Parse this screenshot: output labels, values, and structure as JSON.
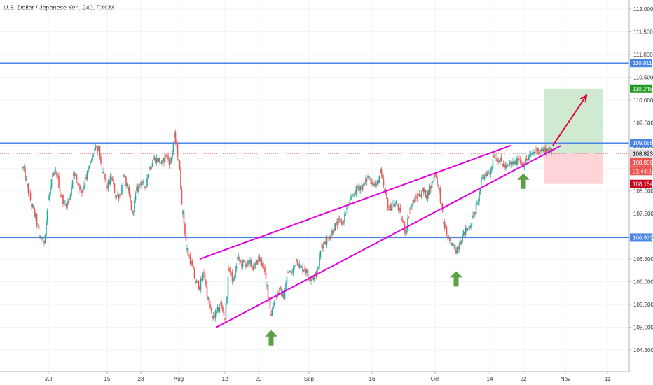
{
  "chart_data": {
    "type": "candlestick",
    "title": "U.S. Dollar / Japanese Yen, 240, FXCM",
    "xlabel": "",
    "ylabel": "",
    "ylim": [
      104.3,
      112.2
    ],
    "grid": true,
    "y_ticks": [
      "104.500",
      "105.000",
      "105.500",
      "106.000",
      "106.500",
      "107.000",
      "107.500",
      "108.000",
      "108.500",
      "109.000",
      "109.500",
      "110.000",
      "110.500",
      "111.000",
      "111.500",
      "112.000"
    ],
    "x_ticks": [
      "Jul",
      "15",
      "23",
      "Aug",
      "12",
      "20",
      "Sep",
      "16",
      "Oct",
      "14",
      "22",
      "Nov",
      "11"
    ],
    "price_path": [
      [
        "Jun 25",
        108.5
      ],
      [
        "Jun 26",
        108.1
      ],
      [
        "Jun 27",
        107.7
      ],
      [
        "Jun 28",
        107.4
      ],
      [
        "Jun 29",
        107.0
      ],
      [
        "Jun 30",
        106.9
      ],
      [
        "Jul 1",
        107.8
      ],
      [
        "Jul 2",
        108.3
      ],
      [
        "Jul 3",
        108.4
      ],
      [
        "Jul 4",
        107.9
      ],
      [
        "Jul 5",
        107.7
      ],
      [
        "Jul 6",
        107.8
      ],
      [
        "Jul 7",
        108.4
      ],
      [
        "Jul 8",
        108.2
      ],
      [
        "Jul 9",
        108.0
      ],
      [
        "Jul 10",
        108.3
      ],
      [
        "Jul 11",
        108.6
      ],
      [
        "Jul 12",
        108.9
      ],
      [
        "Jul 13",
        108.9
      ],
      [
        "Jul 14",
        108.4
      ],
      [
        "Jul 15",
        108.1
      ],
      [
        "Jul 16",
        108.3
      ],
      [
        "Jul 17",
        107.9
      ],
      [
        "Jul 18",
        107.9
      ],
      [
        "Jul 19",
        108.3
      ],
      [
        "Jul 20",
        108.0
      ],
      [
        "Jul 21",
        107.5
      ],
      [
        "Jul 22",
        108.0
      ],
      [
        "Jul 23",
        108.2
      ],
      [
        "Jul 24",
        108.1
      ],
      [
        "Jul 25",
        108.5
      ],
      [
        "Jul 26",
        108.7
      ],
      [
        "Jul 27",
        108.7
      ],
      [
        "Jul 28",
        108.6
      ],
      [
        "Jul 29",
        108.8
      ],
      [
        "Jul 30",
        108.6
      ],
      [
        "Jul 31",
        109.2
      ],
      [
        "Aug 1",
        108.7
      ],
      [
        "Aug 2",
        107.5
      ],
      [
        "Aug 3",
        106.7
      ],
      [
        "Aug 4",
        106.4
      ],
      [
        "Aug 5",
        106.0
      ],
      [
        "Aug 6",
        105.9
      ],
      [
        "Aug 7",
        106.2
      ],
      [
        "Aug 8",
        105.6
      ],
      [
        "Aug 9",
        105.2
      ],
      [
        "Aug 10",
        105.3
      ],
      [
        "Aug 11",
        105.5
      ],
      [
        "Aug 12",
        105.2
      ],
      [
        "Aug 13",
        106.3
      ],
      [
        "Aug 14",
        106.0
      ],
      [
        "Aug 15",
        106.5
      ],
      [
        "Aug 16",
        106.4
      ],
      [
        "Aug 17",
        106.4
      ],
      [
        "Aug 18",
        106.4
      ],
      [
        "Aug 19",
        106.3
      ],
      [
        "Aug 20",
        106.5
      ],
      [
        "Aug 21",
        106.4
      ],
      [
        "Aug 22",
        105.9
      ],
      [
        "Aug 23",
        105.3
      ],
      [
        "Aug 24",
        105.7
      ],
      [
        "Aug 25",
        105.8
      ],
      [
        "Aug 26",
        105.7
      ],
      [
        "Aug 27",
        106.2
      ],
      [
        "Aug 28",
        106.2
      ],
      [
        "Aug 29",
        106.5
      ],
      [
        "Aug 30",
        106.3
      ],
      [
        "Aug 31",
        106.3
      ],
      [
        "Sep 1",
        106.1
      ],
      [
        "Sep 2",
        106.1
      ],
      [
        "Sep 3",
        106.2
      ],
      [
        "Sep 4",
        106.8
      ],
      [
        "Sep 5",
        106.9
      ],
      [
        "Sep 6",
        107.0
      ],
      [
        "Sep 7",
        107.2
      ],
      [
        "Sep 8",
        107.3
      ],
      [
        "Sep 9",
        107.3
      ],
      [
        "Sep 10",
        107.6
      ],
      [
        "Sep 11",
        107.8
      ],
      [
        "Sep 12",
        108.0
      ],
      [
        "Sep 13",
        108.1
      ],
      [
        "Sep 14",
        108.1
      ],
      [
        "Sep 15",
        108.3
      ],
      [
        "Sep 16",
        108.2
      ],
      [
        "Sep 17",
        108.1
      ],
      [
        "Sep 18",
        108.4
      ],
      [
        "Sep 19",
        108.0
      ],
      [
        "Sep 20",
        107.6
      ],
      [
        "Sep 21",
        107.7
      ],
      [
        "Sep 22",
        107.7
      ],
      [
        "Sep 23",
        107.4
      ],
      [
        "Sep 24",
        107.1
      ],
      [
        "Sep 25",
        107.6
      ],
      [
        "Sep 26",
        107.8
      ],
      [
        "Sep 27",
        107.9
      ],
      [
        "Sep 28",
        108.0
      ],
      [
        "Sep 29",
        107.9
      ],
      [
        "Sep 30",
        108.1
      ],
      [
        "Oct 1",
        108.4
      ],
      [
        "Oct 2",
        108.0
      ],
      [
        "Oct 3",
        107.3
      ],
      [
        "Oct 4",
        107.0
      ],
      [
        "Oct 5",
        106.8
      ],
      [
        "Oct 6",
        106.7
      ],
      [
        "Oct 7",
        106.9
      ],
      [
        "Oct 8",
        107.1
      ],
      [
        "Oct 9",
        107.2
      ],
      [
        "Oct 10",
        107.4
      ],
      [
        "Oct 11",
        107.7
      ],
      [
        "Oct 12",
        108.2
      ],
      [
        "Oct 13",
        108.4
      ],
      [
        "Oct 14",
        108.4
      ],
      [
        "Oct 15",
        108.8
      ],
      [
        "Oct 16",
        108.7
      ],
      [
        "Oct 17",
        108.6
      ],
      [
        "Oct 18",
        108.5
      ],
      [
        "Oct 19",
        108.6
      ],
      [
        "Oct 20",
        108.6
      ],
      [
        "Oct 21",
        108.7
      ],
      [
        "Oct 22",
        108.6
      ],
      [
        "Oct 23",
        108.7
      ],
      [
        "Oct 24",
        108.8
      ],
      [
        "Oct 25",
        108.9
      ],
      [
        "Oct 26",
        108.9
      ],
      [
        "Oct 27",
        108.9
      ],
      [
        "Oct 28",
        108.9
      ],
      [
        "Oct 29",
        108.8
      ]
    ],
    "horizontal_levels": [
      {
        "value": 110.811,
        "label": "110.811",
        "color": "#4a86e8"
      },
      {
        "value": 109.055,
        "label": "109.055",
        "color": "#4a86e8"
      },
      {
        "value": 106.973,
        "label": "106.973",
        "color": "#4a86e8"
      }
    ],
    "price_tags": [
      {
        "value": 110.248,
        "label": "110.248",
        "color": "#229922"
      },
      {
        "value": 108.823,
        "label": "108.823",
        "color": "#dddddd"
      },
      {
        "value": 108.8,
        "label": "108.800",
        "color": "#ef5350"
      },
      {
        "value": 108.57,
        "label": "01:44:23",
        "color": "#ef5350"
      },
      {
        "value": 108.154,
        "label": "108.154",
        "color": "#d0021b"
      }
    ],
    "trendlines": [
      {
        "name": "upper",
        "from": [
          "Aug 6",
          106.5
        ],
        "to": [
          "Oct 19",
          109.0
        ],
        "color": "#e000e0"
      },
      {
        "name": "lower",
        "from": [
          "Aug 10",
          105.0
        ],
        "to": [
          "Oct 31",
          109.0
        ],
        "color": "#e000e0"
      }
    ],
    "position_box": {
      "entry": 108.823,
      "target": 110.248,
      "stop": 108.154,
      "from": "Oct 27",
      "to": "Nov 10"
    },
    "annotations": [
      {
        "type": "arrow-up",
        "at": [
          "Aug 23",
          104.75
        ],
        "color": "#5ba146"
      },
      {
        "type": "arrow-up",
        "at": [
          "Oct 6",
          106.05
        ],
        "color": "#5ba146"
      },
      {
        "type": "arrow-up",
        "at": [
          "Oct 22",
          108.2
        ],
        "color": "#5ba146"
      },
      {
        "type": "arrow",
        "from": [
          "Oct 29",
          109.0
        ],
        "to": [
          "Nov 6",
          110.1
        ],
        "color": "#e8003b"
      }
    ]
  }
}
